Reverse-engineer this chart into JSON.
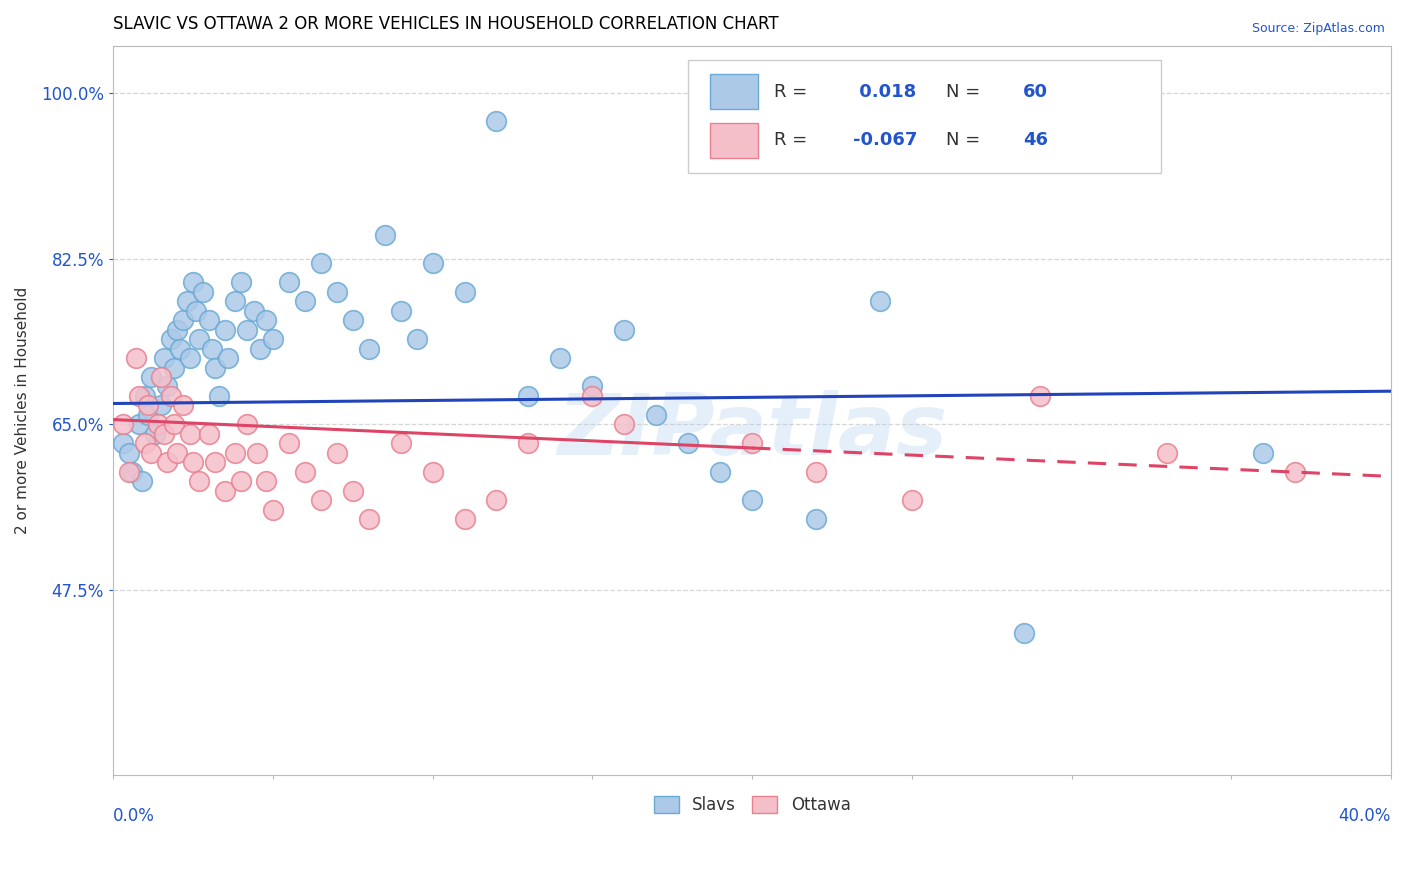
{
  "title": "SLAVIC VS OTTAWA 2 OR MORE VEHICLES IN HOUSEHOLD CORRELATION CHART",
  "source": "Source: ZipAtlas.com",
  "ylabel": "2 or more Vehicles in Household",
  "ytick_labels": [
    "100.0%",
    "82.5%",
    "65.0%",
    "47.5%"
  ],
  "ytick_values": [
    1.0,
    0.825,
    0.65,
    0.475
  ],
  "xlim": [
    0.0,
    0.4
  ],
  "ylim": [
    0.28,
    1.05
  ],
  "R_slavs": 0.018,
  "N_slavs": 60,
  "R_ottawa": -0.067,
  "N_ottawa": 46,
  "slavs_color": "#adc9e8",
  "slavs_edge_color": "#6aaad4",
  "ottawa_color": "#f5bfca",
  "ottawa_edge_color": "#e8808f",
  "trend_slavs_color": "#2244bb",
  "trend_ottawa_color": "#dd4466",
  "watermark": "ZIPatlas",
  "legend_labels": [
    "Slavs",
    "Ottawa"
  ],
  "slavs_x": [
    0.003,
    0.005,
    0.006,
    0.008,
    0.009,
    0.01,
    0.011,
    0.012,
    0.013,
    0.015,
    0.016,
    0.017,
    0.018,
    0.019,
    0.02,
    0.021,
    0.022,
    0.023,
    0.024,
    0.025,
    0.026,
    0.027,
    0.028,
    0.03,
    0.031,
    0.032,
    0.033,
    0.035,
    0.036,
    0.038,
    0.04,
    0.042,
    0.044,
    0.046,
    0.048,
    0.05,
    0.055,
    0.06,
    0.065,
    0.07,
    0.075,
    0.08,
    0.085,
    0.09,
    0.095,
    0.1,
    0.11,
    0.12,
    0.13,
    0.14,
    0.15,
    0.16,
    0.17,
    0.18,
    0.19,
    0.2,
    0.22,
    0.24,
    0.285,
    0.36
  ],
  "slavs_y": [
    0.63,
    0.62,
    0.6,
    0.65,
    0.59,
    0.68,
    0.66,
    0.7,
    0.64,
    0.67,
    0.72,
    0.69,
    0.74,
    0.71,
    0.75,
    0.73,
    0.76,
    0.78,
    0.72,
    0.8,
    0.77,
    0.74,
    0.79,
    0.76,
    0.73,
    0.71,
    0.68,
    0.75,
    0.72,
    0.78,
    0.8,
    0.75,
    0.77,
    0.73,
    0.76,
    0.74,
    0.8,
    0.78,
    0.82,
    0.79,
    0.76,
    0.73,
    0.85,
    0.77,
    0.74,
    0.82,
    0.79,
    0.97,
    0.68,
    0.72,
    0.69,
    0.75,
    0.66,
    0.63,
    0.6,
    0.57,
    0.55,
    0.78,
    0.43,
    0.62
  ],
  "ottawa_x": [
    0.003,
    0.005,
    0.007,
    0.008,
    0.01,
    0.011,
    0.012,
    0.014,
    0.015,
    0.016,
    0.017,
    0.018,
    0.019,
    0.02,
    0.022,
    0.024,
    0.025,
    0.027,
    0.03,
    0.032,
    0.035,
    0.038,
    0.04,
    0.042,
    0.045,
    0.048,
    0.05,
    0.055,
    0.06,
    0.065,
    0.07,
    0.075,
    0.08,
    0.09,
    0.1,
    0.11,
    0.12,
    0.13,
    0.15,
    0.16,
    0.2,
    0.22,
    0.25,
    0.29,
    0.33,
    0.37
  ],
  "ottawa_y": [
    0.65,
    0.6,
    0.72,
    0.68,
    0.63,
    0.67,
    0.62,
    0.65,
    0.7,
    0.64,
    0.61,
    0.68,
    0.65,
    0.62,
    0.67,
    0.64,
    0.61,
    0.59,
    0.64,
    0.61,
    0.58,
    0.62,
    0.59,
    0.65,
    0.62,
    0.59,
    0.56,
    0.63,
    0.6,
    0.57,
    0.62,
    0.58,
    0.55,
    0.63,
    0.6,
    0.55,
    0.57,
    0.63,
    0.68,
    0.65,
    0.63,
    0.6,
    0.57,
    0.68,
    0.62,
    0.6
  ],
  "slavs_trend_x0": 0.0,
  "slavs_trend_y0": 0.672,
  "slavs_trend_x1": 0.4,
  "slavs_trend_y1": 0.685,
  "ottawa_trend_solid_x0": 0.0,
  "ottawa_trend_solid_y0": 0.655,
  "ottawa_trend_solid_x1": 0.2,
  "ottawa_trend_solid_y1": 0.625,
  "ottawa_trend_dash_x0": 0.2,
  "ottawa_trend_dash_y0": 0.625,
  "ottawa_trend_dash_x1": 0.4,
  "ottawa_trend_dash_y1": 0.595
}
